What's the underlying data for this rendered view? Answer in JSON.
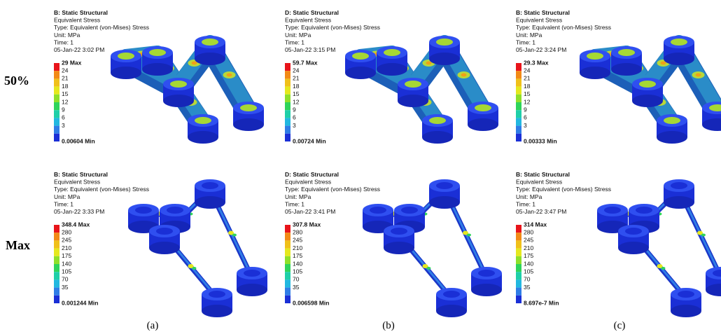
{
  "row_labels": [
    "50%",
    "Max"
  ],
  "column_labels": [
    "(a)",
    "(b)",
    "(c)"
  ],
  "panels": [
    {
      "header": [
        "B: Static Structural",
        "Equivalent Stress",
        "Type: Equivalent (von-Mises) Stress",
        "Unit: MPa",
        "Time: 1",
        "05-Jan-22 3:02 PM"
      ],
      "legend": [
        "29 Max",
        "24",
        "21",
        "18",
        "15",
        "12",
        "9",
        "6",
        "3",
        "0.00604 Min"
      ]
    },
    {
      "header": [
        "D: Static Structural",
        "Equivalent Stress",
        "Type: Equivalent (von-Mises) Stress",
        "Unit: MPa",
        "Time: 1",
        "05-Jan-22 3:15 PM"
      ],
      "legend": [
        "59.7 Max",
        "24",
        "21",
        "18",
        "15",
        "12",
        "9",
        "6",
        "3",
        "0.00724 Min"
      ]
    },
    {
      "header": [
        "B: Static Structural",
        "Equivalent Stress",
        "Type: Equivalent (von-Mises) Stress",
        "Unit: MPa",
        "Time: 1",
        "05-Jan-22 3:24 PM"
      ],
      "legend": [
        "29.3 Max",
        "24",
        "21",
        "18",
        "15",
        "12",
        "9",
        "6",
        "3",
        "0.00333 Min"
      ]
    },
    {
      "header": [
        "B: Static Structural",
        "Equivalent Stress",
        "Type: Equivalent (von-Mises) Stress",
        "Unit: MPa",
        "Time: 1",
        "05-Jan-22 3:33 PM"
      ],
      "legend": [
        "348.4 Max",
        "280",
        "245",
        "210",
        "175",
        "140",
        "105",
        "70",
        "35",
        "0.001244 Min"
      ]
    },
    {
      "header": [
        "D: Static Structural",
        "Equivalent Stress",
        "Type: Equivalent (von-Mises) Stress",
        "Unit: MPa",
        "Time: 1",
        "05-Jan-22 3:41 PM"
      ],
      "legend": [
        "307.8 Max",
        "280",
        "245",
        "210",
        "175",
        "140",
        "105",
        "70",
        "35",
        "0.006598 Min"
      ]
    },
    {
      "header": [
        "B: Static Structural",
        "Equivalent Stress",
        "Type: Equivalent (von-Mises) Stress",
        "Unit: MPa",
        "Time: 1",
        "05-Jan-22 3:47 PM"
      ],
      "legend": [
        "314 Max",
        "280",
        "245",
        "210",
        "175",
        "140",
        "105",
        "70",
        "35",
        "8.697e-7 Min"
      ]
    }
  ]
}
